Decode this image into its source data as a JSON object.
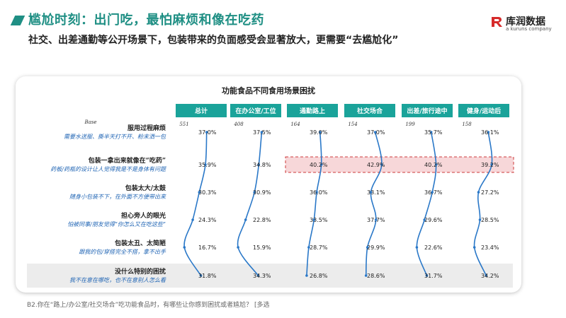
{
  "header": {
    "title": "尴尬时刻：出门吃，最怕麻烦和像在吃药",
    "subtitle": "社交、出差通勤等公开场景下，包装带来的负面感受会显著放大，更需要“去尴尬化”"
  },
  "logo": {
    "name_cn": "库润数据",
    "name_en": "a kuruns company"
  },
  "footnote": "B2.你在“路上/办公室/社交场合”吃功能食品时，有哪些让你感到困扰或者尴尬？ [多选",
  "colors": {
    "accent": "#1f8f84",
    "header_bg": "#1aa39a",
    "line": "#2a78c8",
    "highlight_bg": "#f7d7d9",
    "highlight_border": "#cc3b3b",
    "text": "#222222",
    "subtext": "#1f64b4"
  },
  "chart_data": {
    "type": "table",
    "title": "功能食品不同食用场景困扰",
    "base_label": "Base",
    "columns": [
      {
        "name": "总计",
        "base": "551"
      },
      {
        "name": "在办公室/工位",
        "base": "408"
      },
      {
        "name": "通勤路上",
        "base": "164"
      },
      {
        "name": "社交场合",
        "base": "154"
      },
      {
        "name": "出差/旅行途中",
        "base": "199"
      },
      {
        "name": "健身/运动后",
        "base": "158"
      }
    ],
    "rows": [
      {
        "label": "服用过程麻烦",
        "sublabel": "需要水送服、撕半天打不开、粉末洒一包"
      },
      {
        "label": "包装一拿出来就像在“吃药”",
        "sublabel": "药板/药瓶的设计让人觉得我是不是身体有问题"
      },
      {
        "label": "包装太大/太鼓",
        "sublabel": "随身小包装不下，在外面不方便带出来"
      },
      {
        "label": "担心旁人的眼光",
        "sublabel": "怕被同事/朋友觉得“你怎么又在吃这些”"
      },
      {
        "label": "包装太丑、太简陋",
        "sublabel": "跟我的包/穿搭完全不搭，拿不出手"
      },
      {
        "label": "没什么特别的困扰",
        "sublabel": "我不在意在哪吃，也不在意别人怎么看"
      }
    ],
    "values": [
      [
        37.0,
        35.9,
        30.3,
        24.3,
        16.7,
        31.8
      ],
      [
        37.5,
        34.8,
        30.9,
        22.8,
        15.9,
        34.3
      ],
      [
        39.0,
        40.2,
        36.0,
        33.5,
        28.7,
        26.8
      ],
      [
        37.0,
        42.9,
        33.1,
        37.7,
        29.9,
        28.6
      ],
      [
        35.7,
        40.2,
        36.7,
        29.6,
        22.6,
        31.7
      ],
      [
        36.1,
        39.2,
        27.2,
        28.5,
        23.4,
        34.2
      ]
    ],
    "value_labels": [
      [
        "37.0%",
        "35.9%",
        "30.3%",
        "24.3%",
        "16.7%",
        "31.8%"
      ],
      [
        "37.5%",
        "34.8%",
        "30.9%",
        "22.8%",
        "15.9%",
        "34.3%"
      ],
      [
        "39.0%",
        "40.2%",
        "36.0%",
        "33.5%",
        "28.7%",
        "26.8%"
      ],
      [
        "37.0%",
        "42.9%",
        "33.1%",
        "37.7%",
        "29.9%",
        "28.6%"
      ],
      [
        "35.7%",
        "40.2%",
        "36.7%",
        "29.6%",
        "22.6%",
        "31.7%"
      ],
      [
        "36.1%",
        "39.2%",
        "27.2%",
        "28.5%",
        "23.4%",
        "34.2%"
      ]
    ],
    "highlight": {
      "row": 1,
      "from_column": 2,
      "to_column": 5
    },
    "shaded_row": 5
  }
}
